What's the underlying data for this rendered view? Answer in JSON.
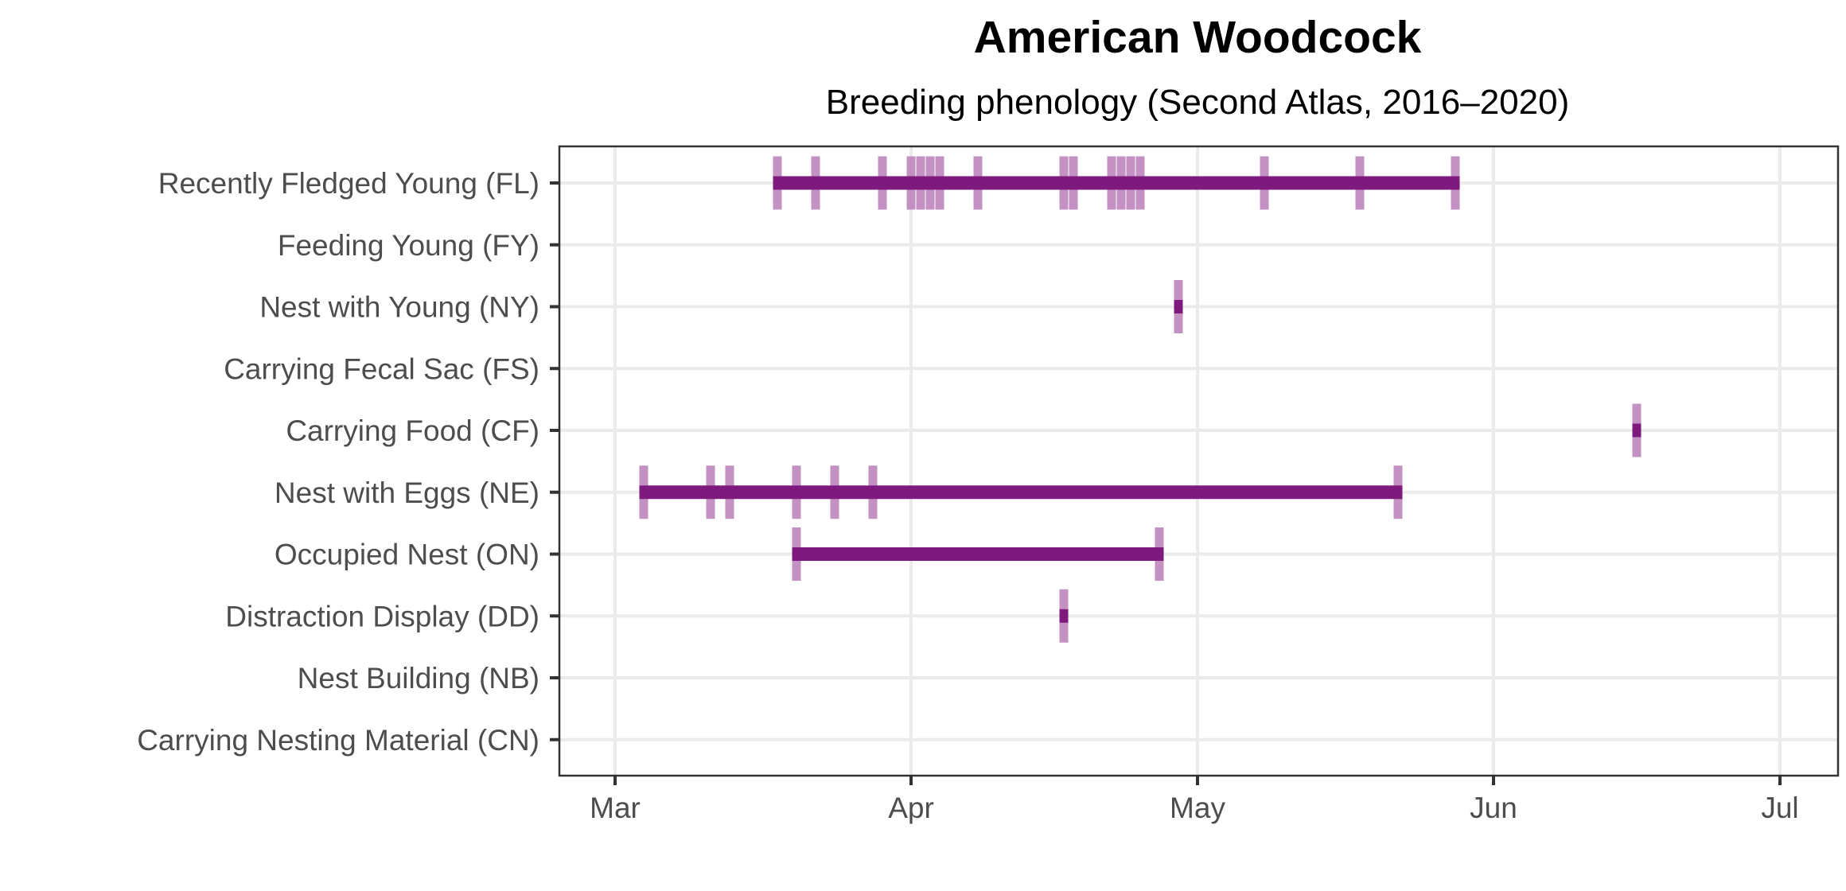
{
  "chart_data": {
    "type": "timeline",
    "title": "American Woodcock",
    "subtitle": "Breeding phenology (Second Atlas, 2016–2020)",
    "xlabel": "",
    "ylabel": "",
    "x_axis": {
      "ticks": [
        {
          "label": "Mar",
          "date": "03-01"
        },
        {
          "label": "Apr",
          "date": "04-01"
        },
        {
          "label": "May",
          "date": "05-01"
        },
        {
          "label": "Jun",
          "date": "06-01"
        },
        {
          "label": "Jul",
          "date": "07-01"
        }
      ],
      "range": [
        "02-24",
        "07-07"
      ]
    },
    "grid": true,
    "colors": {
      "range": "#7e1a7d",
      "observation": "#b97fb8"
    },
    "categories": [
      "Recently Fledged Young (FL)",
      "Feeding Young (FY)",
      "Nest with Young (NY)",
      "Carrying Fecal Sac (FS)",
      "Carrying Food (CF)",
      "Nest with Eggs (NE)",
      "Occupied Nest (ON)",
      "Distraction Display (DD)",
      "Nest Building (NB)",
      "Carrying Nesting Material (CN)"
    ],
    "series": [
      {
        "category": "Recently Fledged Young (FL)",
        "range": [
          "03-18",
          "05-28"
        ],
        "observations": [
          "03-18",
          "03-22",
          "03-29",
          "04-01",
          "04-02",
          "04-03",
          "04-04",
          "04-08",
          "04-17",
          "04-18",
          "04-22",
          "04-23",
          "04-24",
          "04-25",
          "05-08",
          "05-18",
          "05-28"
        ]
      },
      {
        "category": "Feeding Young (FY)",
        "range": null,
        "observations": []
      },
      {
        "category": "Nest with Young (NY)",
        "range": [
          "04-29",
          "04-29"
        ],
        "observations": [
          "04-29"
        ]
      },
      {
        "category": "Carrying Fecal Sac (FS)",
        "range": null,
        "observations": []
      },
      {
        "category": "Carrying Food (CF)",
        "range": [
          "06-16",
          "06-16"
        ],
        "observations": [
          "06-16"
        ]
      },
      {
        "category": "Nest with Eggs (NE)",
        "range": [
          "03-04",
          "05-22"
        ],
        "observations": [
          "03-04",
          "03-11",
          "03-13",
          "03-20",
          "03-24",
          "03-28",
          "05-22"
        ]
      },
      {
        "category": "Occupied Nest (ON)",
        "range": [
          "03-20",
          "04-27"
        ],
        "observations": [
          "03-20",
          "04-27"
        ]
      },
      {
        "category": "Distraction Display (DD)",
        "range": [
          "04-17",
          "04-17"
        ],
        "observations": [
          "04-17"
        ]
      },
      {
        "category": "Nest Building (NB)",
        "range": null,
        "observations": []
      },
      {
        "category": "Carrying Nesting Material (CN)",
        "range": null,
        "observations": []
      }
    ]
  }
}
